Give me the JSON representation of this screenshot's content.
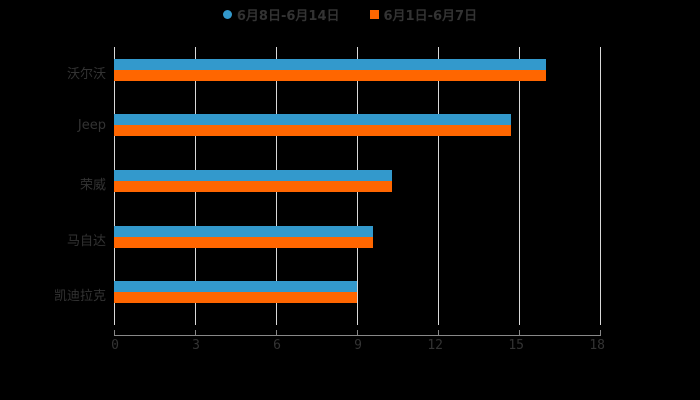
{
  "chart_data": {
    "type": "bar",
    "orientation": "horizontal",
    "title": "",
    "xlabel": "",
    "ylabel": "",
    "categories": [
      "沃尔沃",
      "Jeep",
      "荣威",
      "马自达",
      "凯迪拉克"
    ],
    "series": [
      {
        "name": "6月8日-6月14日",
        "color": "#3399cc",
        "values": [
          16,
          14.7,
          10.3,
          9.6,
          9
        ]
      },
      {
        "name": "6月1日-6月7日",
        "color": "#ff6600",
        "values": [
          16,
          14.7,
          10.3,
          9.6,
          9
        ]
      }
    ],
    "xlim": [
      0,
      18
    ],
    "xticks": [
      "0",
      "3",
      "6",
      "9",
      "12",
      "15",
      "18"
    ],
    "grid": true,
    "legend_position": "top"
  },
  "legend": {
    "items": [
      {
        "label": "6月8日-6月14日",
        "color": "#3399cc",
        "shape": "circle"
      },
      {
        "label": "6月1日-6月7日",
        "color": "#ff6600",
        "shape": "square"
      }
    ]
  }
}
